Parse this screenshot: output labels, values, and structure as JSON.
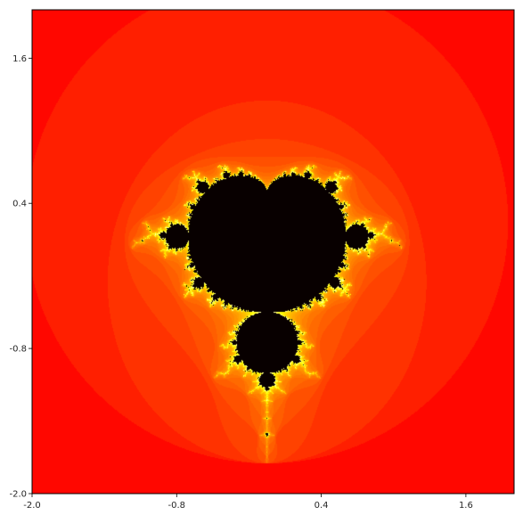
{
  "chart_data": {
    "type": "heatmap",
    "title": "",
    "xlabel": "",
    "ylabel": "",
    "xlim": [
      -2.0,
      2.0
    ],
    "ylim": [
      -2.0,
      2.0
    ],
    "x_ticks": [
      -2.0,
      -0.8,
      0.4,
      1.6
    ],
    "x_tick_labels": [
      "-2.0",
      "-0.8",
      "0.4",
      "1.6"
    ],
    "y_ticks": [
      -2.0,
      -0.8,
      0.4,
      1.6
    ],
    "y_tick_labels": [
      "-2.0",
      "-0.8",
      "0.4",
      "1.6"
    ],
    "grid": false,
    "legend": "none",
    "colormap": "hot",
    "colors": {
      "background": "#730000",
      "set_interior": "#080000",
      "boundary_bright": "#ffff40",
      "mid_red": "#e00000",
      "frame": "#000000"
    }
  }
}
